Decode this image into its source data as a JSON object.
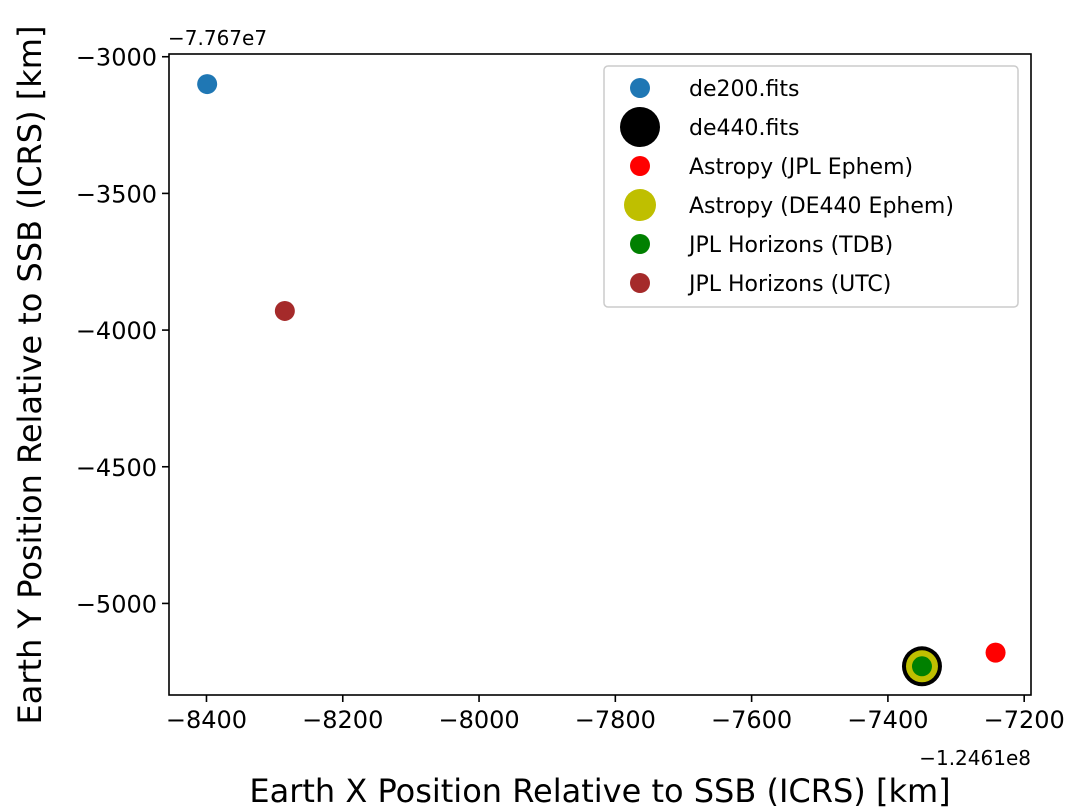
{
  "chart_data": {
    "type": "scatter",
    "xlabel": "Earth X Position Relative to SSB (ICRS) [km]",
    "ylabel": "Earth Y Position Relative to SSB (ICRS) [km]",
    "x_offset_label": "−1.2461e8",
    "y_offset_label": "−7.767e7",
    "xlim": [
      -8455,
      -7190
    ],
    "ylim": [
      -5335,
      -2990
    ],
    "xticks": [
      -8400,
      -8200,
      -8000,
      -7800,
      -7600,
      -7400,
      -7200
    ],
    "xtick_labels": [
      "−8400",
      "−8200",
      "−8000",
      "−7800",
      "−7600",
      "−7400",
      "−7200"
    ],
    "yticks": [
      -3000,
      -3500,
      -4000,
      -4500,
      -5000
    ],
    "ytick_labels": [
      "−3000",
      "−3500",
      "−4000",
      "−4500",
      "−5000"
    ],
    "grid": false,
    "legend_position": "upper right",
    "series": [
      {
        "name": "de200.fits",
        "color": "#1f77b4",
        "marker_size": "normal",
        "x": [
          -8399
        ],
        "y": [
          -3100
        ]
      },
      {
        "name": "de440.fits",
        "color": "#000000",
        "marker_size": "large",
        "x": [
          -7350
        ],
        "y": [
          -5230
        ]
      },
      {
        "name": "Astropy (JPL Ephem)",
        "color": "#ff0000",
        "marker_size": "normal",
        "x": [
          -7242
        ],
        "y": [
          -5180
        ]
      },
      {
        "name": "Astropy (DE440 Ephem)",
        "color": "#bfbf00",
        "marker_size": "medium",
        "x": [
          -7350
        ],
        "y": [
          -5230
        ]
      },
      {
        "name": "JPL Horizons (TDB)",
        "color": "#008000",
        "marker_size": "normal",
        "x": [
          -7350
        ],
        "y": [
          -5230
        ]
      },
      {
        "name": "JPL Horizons (UTC)",
        "color": "#a52a2a",
        "marker_size": "normal",
        "x": [
          -8285
        ],
        "y": [
          -3930
        ]
      }
    ]
  }
}
